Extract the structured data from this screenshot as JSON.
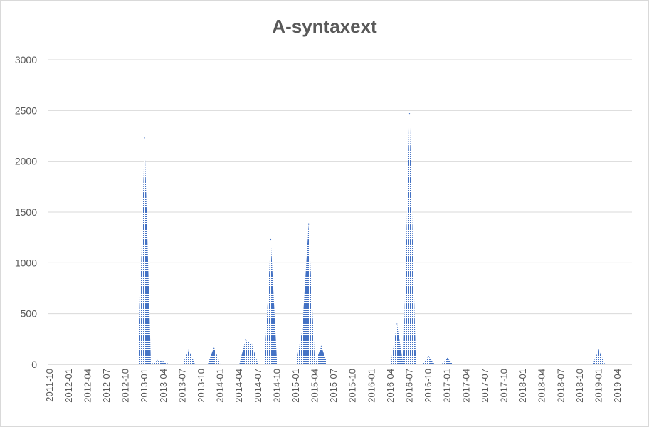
{
  "chart_data": {
    "type": "area",
    "title": "A-syntaxext",
    "xlabel": "",
    "ylabel": "",
    "ylim": [
      0,
      3000
    ],
    "yticks": [
      "0",
      "500",
      "1000",
      "1500",
      "2000",
      "2500",
      "3000"
    ],
    "grid": true,
    "legend": "none",
    "colors": {
      "fill": "#4472c4",
      "grid": "#d9d9d9",
      "text": "#595959"
    },
    "xtick_labels": [
      "2011-10",
      "2012-01",
      "2012-04",
      "2012-07",
      "2012-10",
      "2013-01",
      "2013-04",
      "2013-07",
      "2013-10",
      "2014-01",
      "2014-04",
      "2014-07",
      "2014-10",
      "2015-01",
      "2015-04",
      "2015-07",
      "2015-10",
      "2016-01",
      "2016-04",
      "2016-07",
      "2016-10",
      "2017-01",
      "2017-04",
      "2017-07",
      "2017-10",
      "2018-01",
      "2018-04",
      "2018-07",
      "2018-10",
      "2019-01",
      "2019-04"
    ],
    "x": [
      "2011-10",
      "2011-11",
      "2011-12",
      "2012-01",
      "2012-02",
      "2012-03",
      "2012-04",
      "2012-05",
      "2012-06",
      "2012-07",
      "2012-08",
      "2012-09",
      "2012-10",
      "2012-11",
      "2012-12",
      "2013-01",
      "2013-02",
      "2013-03",
      "2013-04",
      "2013-05",
      "2013-06",
      "2013-07",
      "2013-08",
      "2013-09",
      "2013-10",
      "2013-11",
      "2013-12",
      "2014-01",
      "2014-02",
      "2014-03",
      "2014-04",
      "2014-05",
      "2014-06",
      "2014-07",
      "2014-08",
      "2014-09",
      "2014-10",
      "2014-11",
      "2014-12",
      "2015-01",
      "2015-02",
      "2015-03",
      "2015-04",
      "2015-05",
      "2015-06",
      "2015-07",
      "2015-08",
      "2015-09",
      "2015-10",
      "2015-11",
      "2015-12",
      "2016-01",
      "2016-02",
      "2016-03",
      "2016-04",
      "2016-05",
      "2016-06",
      "2016-07",
      "2016-08",
      "2016-09",
      "2016-10",
      "2016-11",
      "2016-12",
      "2017-01",
      "2017-02",
      "2017-03",
      "2017-04",
      "2017-05",
      "2017-06",
      "2017-07",
      "2017-08",
      "2017-09",
      "2017-10",
      "2017-11",
      "2017-12",
      "2018-01",
      "2018-02",
      "2018-03",
      "2018-04",
      "2018-05",
      "2018-06",
      "2018-07",
      "2018-08",
      "2018-09",
      "2018-10",
      "2018-11",
      "2018-12",
      "2019-01",
      "2019-02",
      "2019-03",
      "2019-04",
      "2019-05",
      "2019-06"
    ],
    "values": [
      0,
      0,
      0,
      0,
      0,
      0,
      0,
      0,
      0,
      0,
      0,
      0,
      0,
      0,
      0,
      2230,
      0,
      40,
      30,
      0,
      0,
      0,
      140,
      0,
      0,
      0,
      170,
      0,
      0,
      0,
      0,
      240,
      200,
      0,
      0,
      1230,
      0,
      0,
      0,
      0,
      350,
      1380,
      0,
      180,
      0,
      0,
      0,
      0,
      0,
      0,
      0,
      0,
      0,
      0,
      0,
      400,
      0,
      2470,
      0,
      0,
      80,
      0,
      0,
      60,
      0,
      0,
      0,
      0,
      0,
      0,
      0,
      0,
      0,
      0,
      0,
      0,
      0,
      0,
      0,
      0,
      0,
      0,
      0,
      0,
      0,
      0,
      0,
      140,
      0,
      0,
      0,
      0,
      0
    ]
  }
}
